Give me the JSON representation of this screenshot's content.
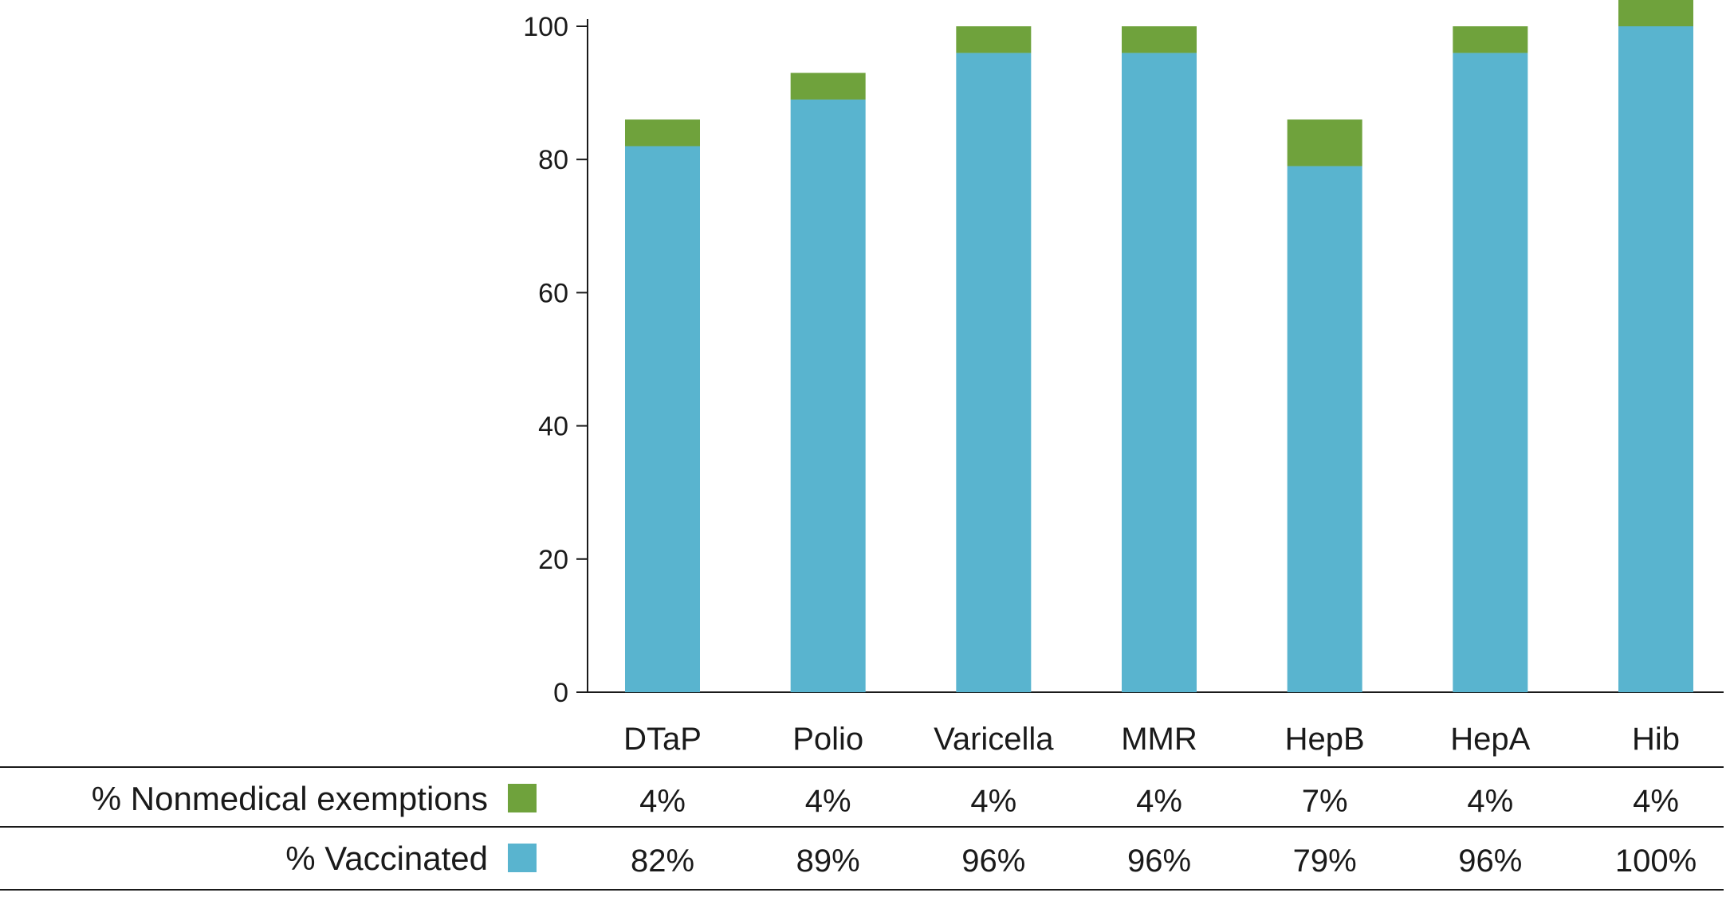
{
  "chart_data": {
    "type": "bar",
    "stacked": true,
    "categories": [
      "DTaP",
      "Polio",
      "Varicella",
      "MMR",
      "HepB",
      "HepA",
      "Hib"
    ],
    "series": [
      {
        "name": "% Vaccinated",
        "color": "#59b4cf",
        "values": [
          82,
          89,
          96,
          96,
          79,
          96,
          100
        ],
        "labels": [
          "82%",
          "89%",
          "96%",
          "96%",
          "79%",
          "96%",
          "100%"
        ]
      },
      {
        "name": "% Nonmedical exemptions",
        "color": "#6fa23c",
        "values": [
          4,
          4,
          4,
          4,
          7,
          4,
          4
        ],
        "labels": [
          "4%",
          "4%",
          "4%",
          "4%",
          "7%",
          "4%",
          "4%"
        ]
      }
    ],
    "ylim": [
      0,
      100
    ],
    "yticks": [
      0,
      20,
      40,
      60,
      80,
      100
    ],
    "grid": false,
    "legend": "table rows below chart"
  }
}
